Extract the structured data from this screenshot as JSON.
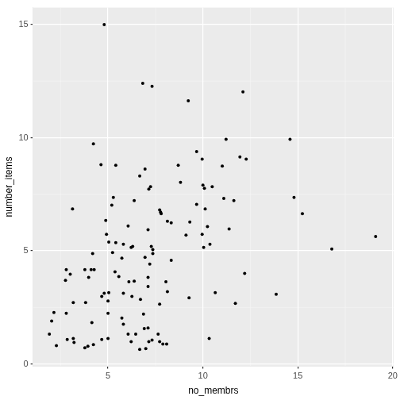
{
  "chart_data": {
    "type": "scatter",
    "x_label": "no_membrs",
    "y_label": "number_items",
    "x": [
      4.8,
      6.83,
      7.32,
      9.23,
      12.11,
      4.23,
      4.63,
      5.41,
      6.95,
      6.67,
      8.7,
      8.82,
      11.22,
      14.59,
      11.02,
      11.95,
      12.28,
      9.67,
      9.96,
      10.0,
      10.08,
      10.49,
      7.15,
      7.24,
      5.28,
      5.2,
      6.38,
      3.13,
      11.1,
      11.63,
      9.67,
      10.12,
      7.72,
      7.8,
      7.77,
      8.13,
      8.33,
      9.31,
      10.24,
      11.38,
      7.11,
      6.06,
      4.88,
      4.92,
      5.04,
      5.41,
      5.81,
      6.22,
      6.3,
      7.28,
      7.36,
      9.11,
      9.96,
      10.04,
      10.37,
      7.36,
      5.24,
      4.19,
      7.2,
      5.73,
      6.95,
      8.33,
      2.8,
      3.01,
      3.78,
      4.11,
      4.27,
      2.76,
      3.98,
      5.37,
      5.57,
      7.11,
      6.1,
      6.38,
      8.05,
      12.2,
      7.11,
      5.81,
      4.8,
      5.04,
      6.26,
      4.67,
      9.27,
      10.65,
      13.86,
      3.17,
      3.82,
      5.0,
      6.71,
      7.72,
      11.71,
      8.13,
      2.8,
      2.15,
      5.0,
      6.87,
      4.15,
      2.03,
      5.81,
      6.91,
      7.11,
      5.73,
      6.06,
      1.91,
      6.46,
      7.64,
      3.17,
      2.85,
      5.0,
      4.67,
      7.32,
      7.72,
      6.22,
      7.89,
      8.09,
      10.33,
      3.78,
      3.94,
      4.23,
      2.28,
      3.21,
      6.67,
      6.99,
      7.15,
      14.8,
      15.24,
      16.79,
      19.1
    ],
    "values": [
      15.0,
      12.4,
      12.27,
      11.63,
      12.03,
      9.73,
      8.81,
      8.78,
      8.61,
      8.31,
      8.78,
      8.03,
      9.93,
      9.93,
      8.75,
      9.15,
      9.05,
      9.39,
      9.05,
      7.9,
      7.76,
      7.83,
      7.73,
      7.83,
      7.36,
      7.02,
      7.22,
      6.85,
      7.32,
      7.22,
      7.05,
      6.85,
      6.81,
      6.64,
      6.71,
      6.31,
      6.24,
      6.27,
      6.07,
      5.97,
      5.93,
      6.1,
      6.34,
      5.73,
      5.39,
      5.36,
      5.29,
      5.15,
      5.19,
      5.19,
      5.05,
      5.69,
      5.73,
      5.15,
      5.29,
      4.88,
      4.92,
      4.88,
      4.41,
      4.68,
      4.71,
      4.58,
      4.17,
      3.97,
      4.17,
      4.17,
      4.17,
      3.69,
      3.83,
      4.07,
      3.86,
      3.83,
      3.63,
      3.66,
      3.63,
      4.0,
      3.42,
      3.12,
      3.12,
      3.15,
      2.98,
      2.98,
      2.92,
      3.15,
      3.08,
      2.71,
      2.71,
      2.78,
      2.85,
      2.64,
      2.68,
      3.19,
      2.24,
      2.27,
      2.24,
      2.2,
      1.83,
      1.9,
      1.76,
      1.56,
      1.59,
      2.03,
      1.32,
      1.32,
      1.32,
      1.32,
      1.12,
      1.08,
      1.12,
      1.08,
      1.05,
      0.98,
      0.98,
      0.88,
      0.88,
      1.12,
      0.71,
      0.78,
      0.85,
      0.81,
      0.95,
      0.64,
      0.68,
      0.98,
      7.36,
      6.64,
      5.08,
      5.63
    ],
    "xlim": [
      1.05,
      20.05
    ],
    "ylim": [
      -0.1,
      15.75
    ],
    "xticks": [
      5,
      10,
      15,
      20
    ],
    "yticks": [
      0,
      5,
      10,
      15
    ],
    "grid": true,
    "color": "#000000",
    "marker": "circle"
  }
}
